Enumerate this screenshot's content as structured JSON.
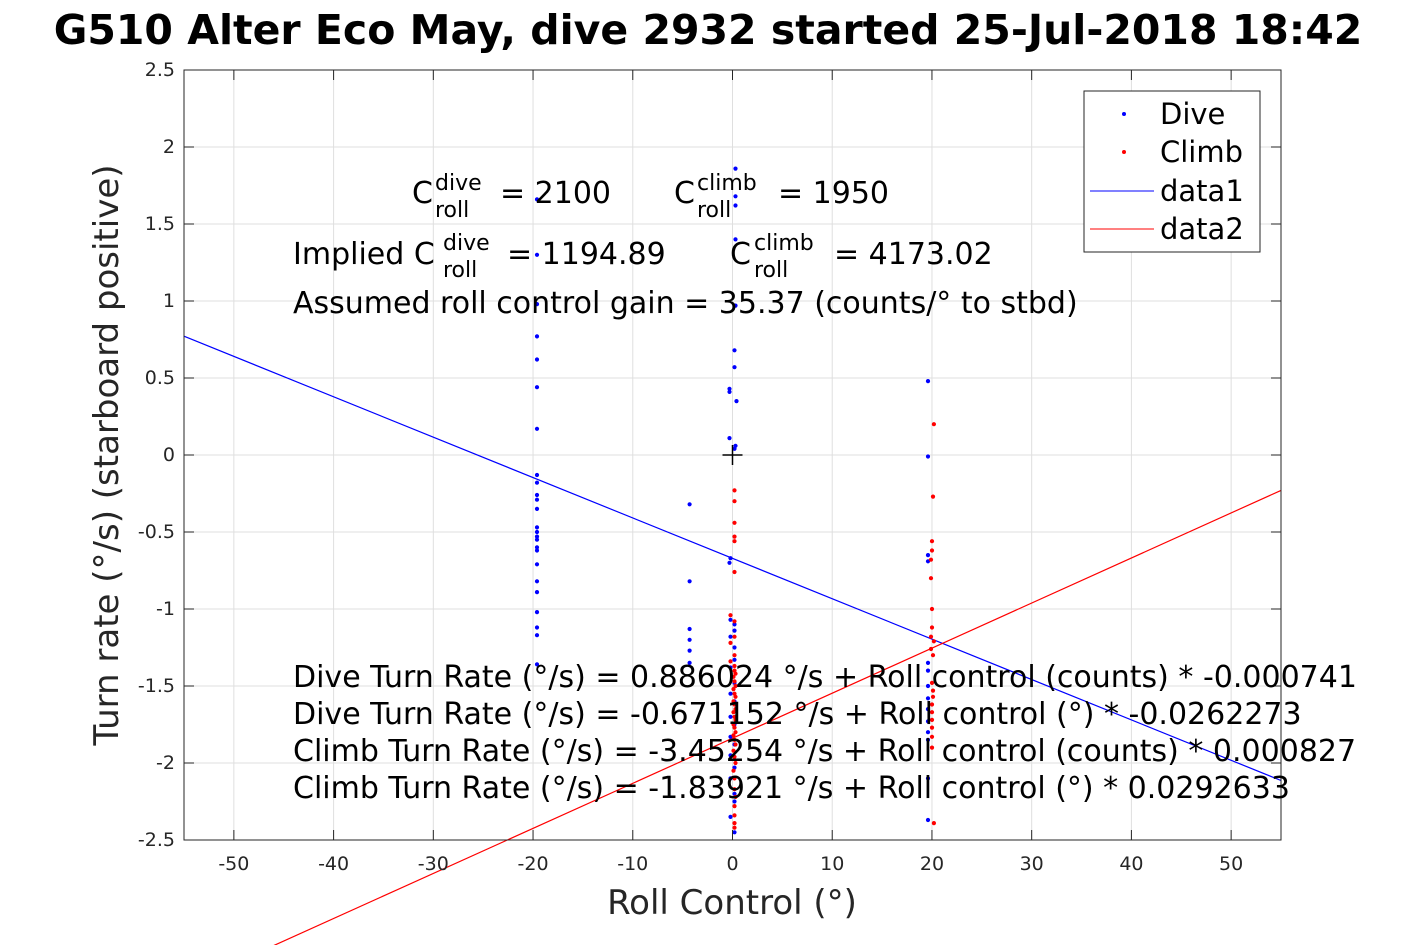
{
  "chart_data": {
    "type": "scatter",
    "title": "G510 Alter Eco May, dive 2932 started 25-Jul-2018 18:42",
    "xlabel": "Roll Control (°)",
    "ylabel": "Turn rate (°/s) (starboard positive)",
    "xlim": [
      -55,
      55
    ],
    "ylim": [
      -2.5,
      2.5
    ],
    "xticks": [
      -50,
      -40,
      -30,
      -20,
      -10,
      0,
      10,
      20,
      30,
      40,
      50
    ],
    "yticks": [
      -2.5,
      -2,
      -1.5,
      -1,
      -0.5,
      0,
      0.5,
      1,
      1.5,
      2,
      2.5
    ],
    "grid": true,
    "legend_position": "top-right",
    "legend": [
      "Dive",
      "Climb",
      "data1",
      "data2"
    ],
    "series": [
      {
        "name": "Dive",
        "kind": "points",
        "color": "#0000ff",
        "points": [
          [
            -19.6,
            1.66
          ],
          [
            -19.6,
            1.3
          ],
          [
            -19.6,
            0.98
          ],
          [
            -19.6,
            0.77
          ],
          [
            -19.6,
            0.62
          ],
          [
            -19.6,
            0.44
          ],
          [
            -19.6,
            0.17
          ],
          [
            -19.6,
            -0.13
          ],
          [
            -19.6,
            -0.18
          ],
          [
            -19.6,
            -0.26
          ],
          [
            -19.6,
            -0.29
          ],
          [
            -19.6,
            -0.35
          ],
          [
            -19.6,
            -0.47
          ],
          [
            -19.6,
            -0.5
          ],
          [
            -19.6,
            -0.53
          ],
          [
            -19.6,
            -0.55
          ],
          [
            -19.6,
            -0.6
          ],
          [
            -19.6,
            -0.62
          ],
          [
            -19.6,
            -0.71
          ],
          [
            -19.6,
            -0.82
          ],
          [
            -19.6,
            -0.89
          ],
          [
            -19.6,
            -1.02
          ],
          [
            -19.6,
            -1.12
          ],
          [
            -19.6,
            -1.17
          ],
          [
            -19.6,
            -1.36
          ],
          [
            -4.3,
            -0.32
          ],
          [
            -4.3,
            -0.82
          ],
          [
            -4.3,
            -1.13
          ],
          [
            -4.3,
            -1.2
          ],
          [
            -4.3,
            -1.27
          ],
          [
            -4.3,
            -1.35
          ],
          [
            0.3,
            1.86
          ],
          [
            0.3,
            1.68
          ],
          [
            0.3,
            1.62
          ],
          [
            0.3,
            1.4
          ],
          [
            0.3,
            0.97
          ],
          [
            0.2,
            0.68
          ],
          [
            0.2,
            0.57
          ],
          [
            -0.3,
            0.43
          ],
          [
            -0.3,
            0.41
          ],
          [
            0.4,
            0.35
          ],
          [
            -0.3,
            0.11
          ],
          [
            0.3,
            0.06
          ],
          [
            0.2,
            0.04
          ],
          [
            -0.2,
            -0.67
          ],
          [
            -0.3,
            -0.7
          ],
          [
            -0.2,
            -1.07
          ],
          [
            0.2,
            -1.1
          ],
          [
            0.2,
            -1.14
          ],
          [
            -0.2,
            -1.18
          ],
          [
            0.2,
            -1.25
          ],
          [
            0.2,
            -1.33
          ],
          [
            -0.2,
            -1.38
          ],
          [
            0.2,
            -1.48
          ],
          [
            -0.2,
            -1.55
          ],
          [
            0.2,
            -1.6
          ],
          [
            -0.2,
            -1.7
          ],
          [
            0.2,
            -1.75
          ],
          [
            -0.2,
            -1.83
          ],
          [
            0.2,
            -1.88
          ],
          [
            -0.2,
            -1.95
          ],
          [
            0.2,
            -2.03
          ],
          [
            -0.2,
            -2.1
          ],
          [
            0.2,
            -2.2
          ],
          [
            0.2,
            -2.25
          ],
          [
            -0.2,
            -2.35
          ],
          [
            0.2,
            -2.45
          ],
          [
            19.6,
            0.48
          ],
          [
            19.6,
            -0.01
          ],
          [
            19.6,
            -0.65
          ],
          [
            19.6,
            -0.69
          ],
          [
            19.6,
            -1.35
          ],
          [
            19.6,
            -1.4
          ],
          [
            19.6,
            -1.5
          ],
          [
            19.6,
            -1.58
          ],
          [
            19.6,
            -1.65
          ],
          [
            19.6,
            -1.73
          ],
          [
            19.6,
            -1.8
          ],
          [
            19.6,
            -1.85
          ],
          [
            19.6,
            -2.1
          ],
          [
            19.6,
            -2.37
          ]
        ]
      },
      {
        "name": "Climb",
        "kind": "points",
        "color": "#ff0000",
        "points": [
          [
            0.2,
            -0.23
          ],
          [
            0.2,
            -0.3
          ],
          [
            0.2,
            -0.44
          ],
          [
            0.2,
            -0.53
          ],
          [
            0.2,
            -0.56
          ],
          [
            0.2,
            -0.76
          ],
          [
            -0.2,
            -1.04
          ],
          [
            0.2,
            -1.08
          ],
          [
            0.2,
            -1.18
          ],
          [
            -0.2,
            -1.22
          ],
          [
            0.2,
            -1.3
          ],
          [
            -0.2,
            -1.34
          ],
          [
            0.2,
            -1.37
          ],
          [
            0.2,
            -1.4
          ],
          [
            0.3,
            -1.42
          ],
          [
            0.1,
            -1.44
          ],
          [
            0.2,
            -1.47
          ],
          [
            0.3,
            -1.5
          ],
          [
            0.1,
            -1.52
          ],
          [
            0.2,
            -1.55
          ],
          [
            0.3,
            -1.57
          ],
          [
            0.1,
            -1.6
          ],
          [
            0.2,
            -1.62
          ],
          [
            0.3,
            -1.65
          ],
          [
            0.1,
            -1.67
          ],
          [
            0.2,
            -1.7
          ],
          [
            0.3,
            -1.72
          ],
          [
            0.1,
            -1.75
          ],
          [
            0.2,
            -1.77
          ],
          [
            0.3,
            -1.8
          ],
          [
            0.1,
            -1.82
          ],
          [
            0.2,
            -1.85
          ],
          [
            0.3,
            -1.88
          ],
          [
            0.1,
            -1.92
          ],
          [
            0.2,
            -1.96
          ],
          [
            0.3,
            -2.0
          ],
          [
            0.1,
            -2.05
          ],
          [
            0.2,
            -2.1
          ],
          [
            0.2,
            -2.17
          ],
          [
            0.3,
            -2.22
          ],
          [
            0.2,
            -2.28
          ],
          [
            0.2,
            -2.34
          ],
          [
            0.2,
            -2.39
          ],
          [
            0.2,
            -2.42
          ],
          [
            20.2,
            0.2
          ],
          [
            20.1,
            -0.27
          ],
          [
            20.0,
            -0.56
          ],
          [
            20.0,
            -0.62
          ],
          [
            19.9,
            -0.68
          ],
          [
            19.9,
            -0.8
          ],
          [
            20.0,
            -1.0
          ],
          [
            20.0,
            -1.12
          ],
          [
            19.9,
            -1.18
          ],
          [
            20.2,
            -1.21
          ],
          [
            19.9,
            -1.26
          ],
          [
            20.1,
            -1.3
          ],
          [
            20.0,
            -1.48
          ],
          [
            20.1,
            -1.53
          ],
          [
            20.1,
            -1.57
          ],
          [
            20.0,
            -1.62
          ],
          [
            20.0,
            -1.67
          ],
          [
            20.0,
            -1.72
          ],
          [
            20.0,
            -1.77
          ],
          [
            20.0,
            -1.83
          ],
          [
            20.0,
            -1.9
          ],
          [
            20.2,
            -2.39
          ]
        ]
      },
      {
        "name": "data1",
        "kind": "line",
        "color": "#0000ff",
        "points": [
          [
            -55,
            0.77135
          ],
          [
            55,
            -2.113653
          ]
        ]
      },
      {
        "name": "data2",
        "kind": "line",
        "color": "#ff0000",
        "points": [
          [
            -55,
            -3.448676
          ],
          [
            55,
            -0.229713
          ]
        ]
      }
    ],
    "origin_marker": [
      0,
      0
    ],
    "annotations": {
      "cdive_label": "C",
      "cdive_sup": "dive",
      "cdive_sub": "roll",
      "cdive_value": "= 2100",
      "cclimb_label": "C",
      "cclimb_sup": "climb",
      "cclimb_sub": "roll",
      "cclimb_value": "= 1950",
      "implied_label": "Implied C",
      "implied_dive_sup": "dive",
      "implied_dive_sub": "roll",
      "implied_dive_value": "= 1194.89",
      "implied_climb_label": "C",
      "implied_climb_sup": "climb",
      "implied_climb_sub": "roll",
      "implied_climb_value": "= 4173.02",
      "gain": "Assumed roll control gain = 35.37 (counts/° to stbd)",
      "eq1": "Dive Turn Rate (°/s) = 0.886024 °/s + Roll control (counts) * -0.000741",
      "eq2": "Dive Turn Rate (°/s) = -0.671152 °/s + Roll control (°) * -0.0262273",
      "eq3": "Climb Turn Rate (°/s) = -3.45254 °/s + Roll control (counts) * 0.000827",
      "eq4": "Climb Turn Rate (°/s) = -1.83921 °/s + Roll control (°) * 0.0292633"
    }
  }
}
